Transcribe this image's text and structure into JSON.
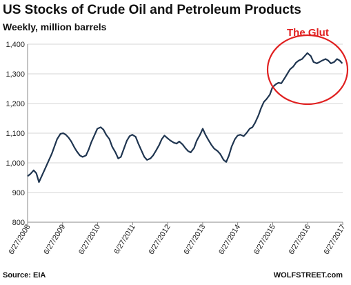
{
  "chart_data": {
    "type": "line",
    "title": "US  Stocks of Crude Oil and Petroleum Products",
    "subtitle": "Weekly, million barrels",
    "source": "Source: EIA",
    "credit": "WOLFSTREET.com",
    "annotation": "The Glut",
    "ylim": [
      800,
      1400
    ],
    "yticks": [
      800,
      900,
      1000,
      1100,
      1200,
      1300,
      1400
    ],
    "ytick_labels": [
      "800",
      "900",
      "1,000",
      "1,100",
      "1,200",
      "1,300",
      "1,400"
    ],
    "xlim": [
      "2008-06-27",
      "2017-06-27"
    ],
    "xtick_labels": [
      "6/27/2008",
      "6/27/2009",
      "6/27/2010",
      "6/27/2011",
      "6/27/2012",
      "6/27/2013",
      "6/27/2014",
      "6/27/2015",
      "6/27/2016",
      "6/27/2017"
    ],
    "grid": "horizontal",
    "line_color": "#1f3550",
    "annotation_color": "#e02020",
    "series": [
      {
        "x": [
          "2008-06-27",
          "2008-07-25",
          "2008-08-29",
          "2008-09-26",
          "2008-10-24",
          "2008-11-28",
          "2009-01-02",
          "2009-02-06",
          "2009-03-06",
          "2009-04-03",
          "2009-05-01",
          "2009-06-05",
          "2009-07-03",
          "2009-07-31",
          "2009-08-28",
          "2009-09-25",
          "2009-10-23",
          "2009-11-20",
          "2009-12-25",
          "2010-01-22",
          "2010-02-26",
          "2010-03-26",
          "2010-04-23",
          "2010-05-28",
          "2010-06-25",
          "2010-07-30",
          "2010-08-27",
          "2010-09-24",
          "2010-10-29",
          "2010-11-26",
          "2010-12-31",
          "2011-01-28",
          "2011-02-25",
          "2011-03-25",
          "2011-04-29",
          "2011-05-27",
          "2011-06-24",
          "2011-07-29",
          "2011-08-26",
          "2011-09-30",
          "2011-10-28",
          "2011-11-25",
          "2011-12-30",
          "2012-01-27",
          "2012-02-24",
          "2012-03-30",
          "2012-04-27",
          "2012-05-25",
          "2012-06-29",
          "2012-07-27",
          "2012-08-31",
          "2012-09-28",
          "2012-10-26",
          "2012-11-30",
          "2012-12-28",
          "2013-01-25",
          "2013-02-22",
          "2013-03-29",
          "2013-04-26",
          "2013-05-31",
          "2013-06-28",
          "2013-07-26",
          "2013-08-30",
          "2013-09-27",
          "2013-10-25",
          "2013-11-29",
          "2013-12-27",
          "2014-01-31",
          "2014-02-28",
          "2014-03-28",
          "2014-04-25",
          "2014-05-30",
          "2014-06-27",
          "2014-07-25",
          "2014-08-29",
          "2014-09-26",
          "2014-10-31",
          "2014-11-28",
          "2014-12-26",
          "2015-01-30",
          "2015-02-27",
          "2015-03-27",
          "2015-04-24",
          "2015-05-29",
          "2015-06-26",
          "2015-07-31",
          "2015-08-28",
          "2015-09-25",
          "2015-10-30",
          "2015-11-27",
          "2015-12-25",
          "2016-01-29",
          "2016-02-26",
          "2016-03-25",
          "2016-04-29",
          "2016-05-27",
          "2016-06-24",
          "2016-07-29",
          "2016-08-26",
          "2016-09-30",
          "2016-10-28",
          "2016-11-25",
          "2016-12-30",
          "2017-01-27",
          "2017-02-24",
          "2017-03-31",
          "2017-04-28",
          "2017-05-26",
          "2017-06-23"
        ],
        "values": [
          955,
          962,
          975,
          965,
          935,
          960,
          985,
          1010,
          1030,
          1055,
          1080,
          1098,
          1100,
          1095,
          1085,
          1072,
          1055,
          1040,
          1025,
          1020,
          1025,
          1045,
          1070,
          1095,
          1115,
          1120,
          1112,
          1095,
          1080,
          1055,
          1035,
          1015,
          1020,
          1045,
          1075,
          1090,
          1095,
          1088,
          1065,
          1040,
          1020,
          1010,
          1015,
          1025,
          1040,
          1060,
          1080,
          1092,
          1082,
          1075,
          1068,
          1065,
          1072,
          1062,
          1050,
          1040,
          1035,
          1050,
          1075,
          1095,
          1115,
          1095,
          1075,
          1060,
          1048,
          1040,
          1030,
          1010,
          1003,
          1025,
          1055,
          1080,
          1092,
          1095,
          1090,
          1100,
          1115,
          1120,
          1135,
          1160,
          1185,
          1205,
          1215,
          1230,
          1255,
          1265,
          1270,
          1268,
          1285,
          1300,
          1315,
          1325,
          1338,
          1345,
          1350,
          1360,
          1370,
          1360,
          1340,
          1335,
          1340,
          1345,
          1350,
          1345,
          1335,
          1340,
          1350,
          1345,
          1335
        ]
      }
    ]
  }
}
